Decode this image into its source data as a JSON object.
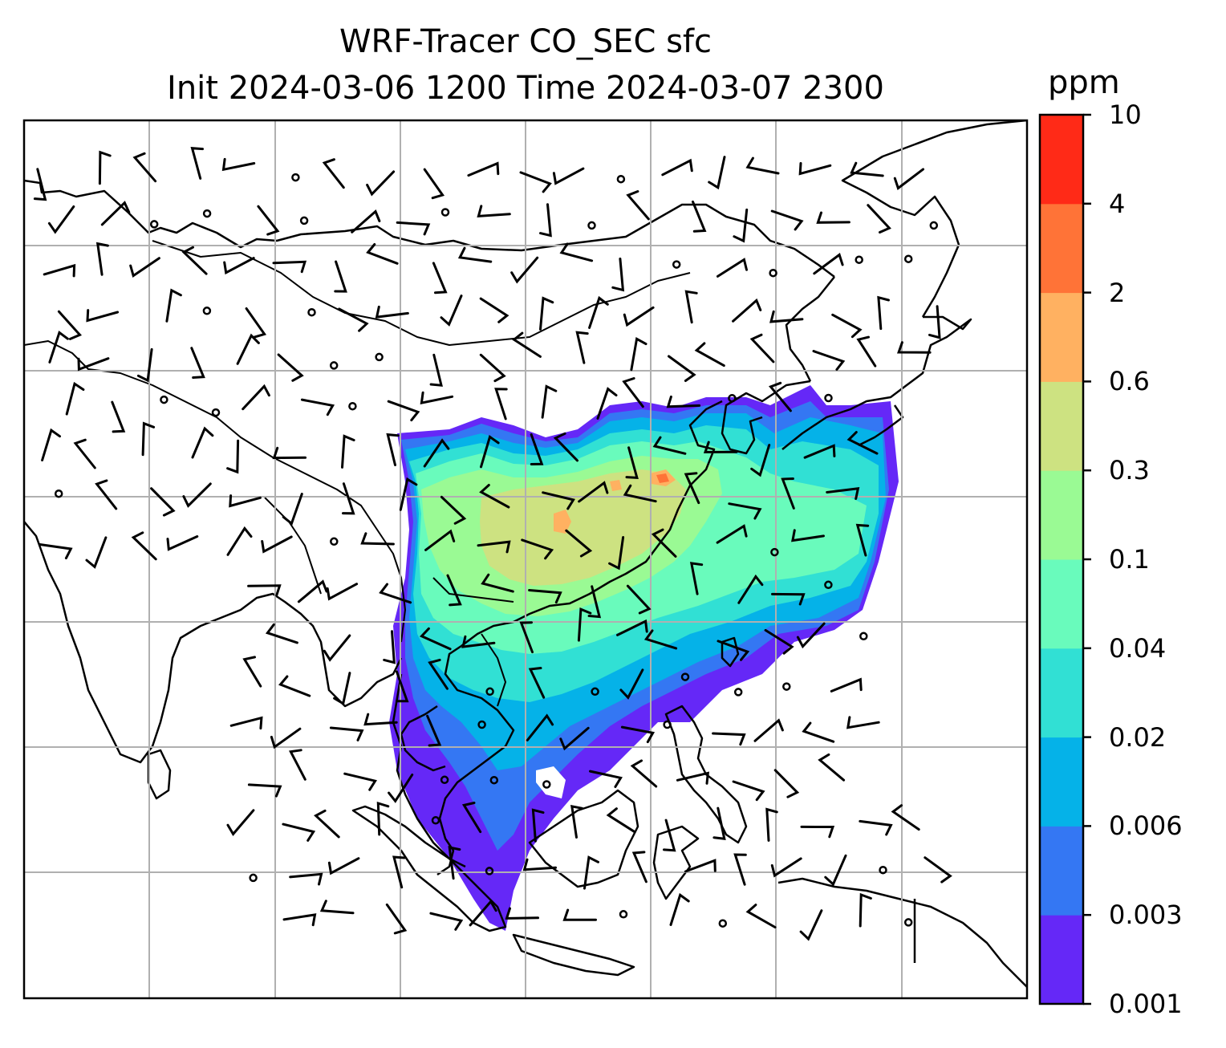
{
  "title": {
    "line1": "WRF-Tracer CO_SEC sfc",
    "line2": "Init 2024-03-06 1200 Time 2024-03-07 2300"
  },
  "colorbar": {
    "unit": "ppm",
    "levels": [
      "0.001",
      "0.003",
      "0.006",
      "0.02",
      "0.04",
      "0.1",
      "0.3",
      "0.6",
      "2",
      "4",
      "10"
    ],
    "colors": [
      "#6528f7",
      "#3477f3",
      "#05b2e8",
      "#31e0d4",
      "#69fbbc",
      "#9afa94",
      "#cde281",
      "#ffb161",
      "#ff7337",
      "#ff2a17"
    ]
  },
  "map": {
    "region": "East / Southeast Asia",
    "gridlines": true,
    "coastline_color": "#000000",
    "grid_color": "#b0b0b0",
    "overlay": "wind barbs and calm-wind circles"
  }
}
